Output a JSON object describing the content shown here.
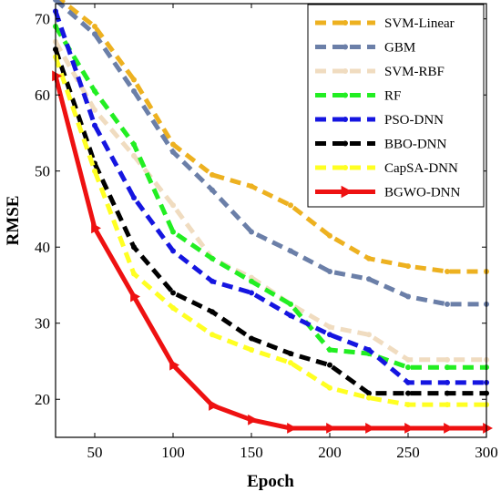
{
  "chart_data": {
    "type": "line",
    "xlabel": "Epoch",
    "ylabel": "RMSE",
    "xlim": [
      25,
      300
    ],
    "ylim": [
      15,
      72
    ],
    "x_ticks": [
      50,
      100,
      150,
      200,
      250,
      300
    ],
    "y_ticks": [
      20,
      30,
      40,
      50,
      60,
      70
    ],
    "grid": false,
    "legend_position": "top-right",
    "x": [
      25,
      50,
      75,
      100,
      125,
      150,
      175,
      200,
      225,
      250,
      275,
      300
    ],
    "series": [
      {
        "name": "SVM-Linear",
        "color": "#EDB120",
        "style": "dashed",
        "marker": "circle",
        "width": 5,
        "values": [
          73,
          69,
          62,
          53.5,
          49.5,
          48,
          45.5,
          41.5,
          38.5,
          37.5,
          36.8,
          36.8
        ]
      },
      {
        "name": "GBM",
        "color": "#6B7FA8",
        "style": "dashed",
        "marker": "circle",
        "width": 5,
        "values": [
          72.5,
          68,
          60.5,
          52.5,
          47.5,
          42,
          39.5,
          36.8,
          35.8,
          33.5,
          32.5,
          32.5
        ]
      },
      {
        "name": "SVM-RBF",
        "color": "#F0DCC0",
        "style": "dashed",
        "marker": "circle",
        "width": 5,
        "values": [
          67,
          58,
          52,
          45.5,
          38.5,
          36,
          32.5,
          29.5,
          28.5,
          25.2,
          25.2,
          25.2
        ]
      },
      {
        "name": "RF",
        "color": "#22EE22",
        "style": "dashed",
        "marker": "circle",
        "width": 5,
        "values": [
          69,
          60.5,
          53.5,
          42,
          38.5,
          35.5,
          32.5,
          26.5,
          26,
          24.2,
          24.2,
          24.2
        ]
      },
      {
        "name": "PSO-DNN",
        "color": "#1515E0",
        "style": "dashed",
        "marker": "circle",
        "width": 5,
        "values": [
          71,
          56,
          46.5,
          39.5,
          35.5,
          34,
          31,
          28.5,
          26.5,
          22.2,
          22.2,
          22.2
        ]
      },
      {
        "name": "BBO-DNN",
        "color": "#000000",
        "style": "dashed",
        "marker": "circle",
        "width": 5,
        "values": [
          66,
          51,
          40,
          34,
          31.5,
          28,
          26,
          24.5,
          20.8,
          20.8,
          20.8,
          20.8
        ]
      },
      {
        "name": "CapSA-DNN",
        "color": "#FFFF22",
        "style": "dashed",
        "marker": "circle",
        "width": 5,
        "values": [
          65,
          50,
          36.5,
          32,
          28.5,
          26.5,
          24.8,
          21.5,
          20.2,
          19.3,
          19.3,
          19.3
        ]
      },
      {
        "name": "BGWO-DNN",
        "color": "#EE1111",
        "style": "solid",
        "marker": "triangle-right",
        "width": 5,
        "values": [
          62.5,
          42.5,
          33.5,
          24.5,
          19.2,
          17.3,
          16.2,
          16.2,
          16.2,
          16.2,
          16.2,
          16.2
        ]
      }
    ]
  }
}
